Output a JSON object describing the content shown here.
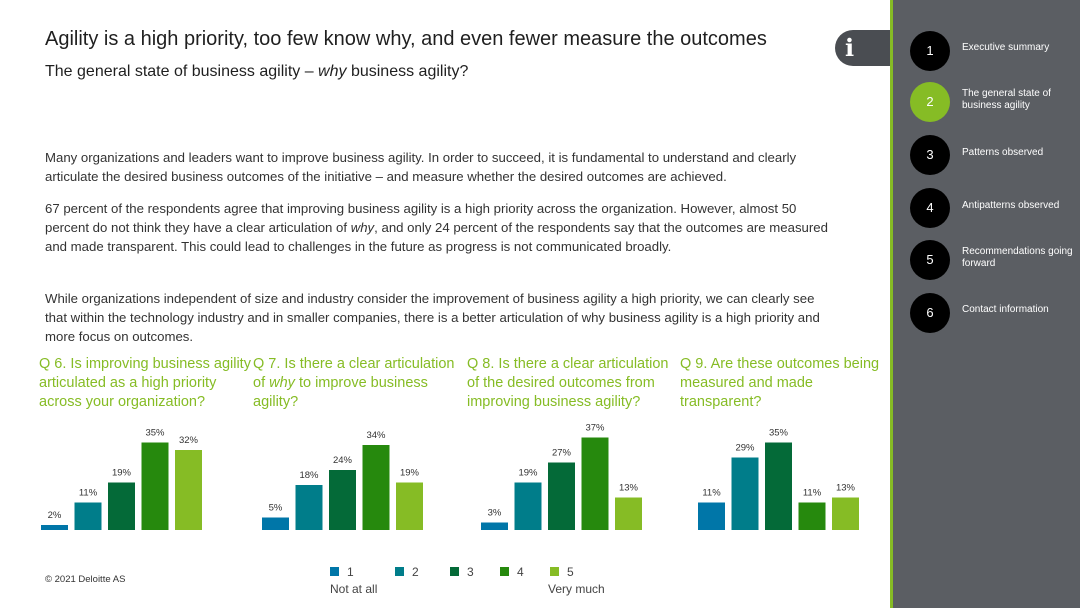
{
  "header": {
    "title": "Agility is a high priority, too few know why, and even fewer measure the outcomes",
    "subtitle": "The general state of business agility – why business agility?",
    "info_icon": "info-icon"
  },
  "paragraphs": {
    "p1": "Many organizations and leaders want to improve business agility. In order to succeed, it is fundamental to understand and clearly articulate the desired business outcomes of the initiative – and measure whether the desired outcomes are achieved.",
    "p2": "67 percent of the respondents agree that improving business agility is a high priority across the organization. However, almost 50 percent do not think they have a clear articulation of why, and only 24 percent of the respondents say that the outcomes are measured and made transparent. This could lead to challenges in the future as progress is not communicated broadly.",
    "p3": "While organizations independent of size and industry consider the improvement of business agility a high priority, we can clearly see that within the technology industry and in smaller companies, there is a better articulation of why business agility is a high priority and more focus on outcomes."
  },
  "questions": [
    "Q 6. Is improving business agility articulated as a high priority across your organization?",
    "Q 7. Is there a clear articulation of why to improve business agility?",
    "Q 8. Is there a clear articulation of the desired outcomes from improving business agility?",
    "Q 9. Are these outcomes being measured and made transparent?"
  ],
  "chart_data": [
    {
      "type": "bar",
      "title": "Q 6. Is improving business agility articulated as a high priority across your organization?",
      "categories": [
        "1",
        "2",
        "3",
        "4",
        "5"
      ],
      "values": [
        2,
        11,
        19,
        35,
        32
      ],
      "labels": [
        "2%",
        "11%",
        "19%",
        "35%",
        "32%"
      ]
    },
    {
      "type": "bar",
      "title": "Q 7. Is there a clear articulation of why to improve business agility?",
      "categories": [
        "1",
        "2",
        "3",
        "4",
        "5"
      ],
      "values": [
        5,
        18,
        24,
        34,
        19
      ],
      "labels": [
        "5%",
        "18%",
        "24%",
        "34%",
        "19%"
      ]
    },
    {
      "type": "bar",
      "title": "Q 8. Is there a clear articulation of the desired outcomes from improving business agility?",
      "categories": [
        "1",
        "2",
        "3",
        "4",
        "5"
      ],
      "values": [
        3,
        19,
        27,
        37,
        13
      ],
      "labels": [
        "3%",
        "19%",
        "27%",
        "37%",
        "13%"
      ]
    },
    {
      "type": "bar",
      "title": "Q 9. Are these outcomes being measured and made transparent?",
      "categories": [
        "1",
        "2",
        "3",
        "4",
        "5"
      ],
      "values": [
        11,
        29,
        35,
        11,
        13
      ],
      "labels": [
        "11%",
        "29%",
        "35%",
        "11%",
        "13%"
      ]
    }
  ],
  "colors": [
    "#0076a8",
    "#007d8a",
    "#046a38",
    "#26890d",
    "#86bc25"
  ],
  "legend": {
    "items": [
      "1",
      "2",
      "3",
      "4",
      "5"
    ],
    "low_label": "Not at all",
    "high_label": "Very much"
  },
  "footer": {
    "copyright": "© 2021 Deloitte AS"
  },
  "sidebar": {
    "active_index": 1,
    "items": [
      {
        "number": "1",
        "label": "Executive summary"
      },
      {
        "number": "2",
        "label": "The general state of business agility"
      },
      {
        "number": "3",
        "label": "Patterns observed"
      },
      {
        "number": "4",
        "label": "Antipatterns observed"
      },
      {
        "number": "5",
        "label": "Recommendations going forward"
      },
      {
        "number": "6",
        "label": "Contact information"
      }
    ]
  }
}
